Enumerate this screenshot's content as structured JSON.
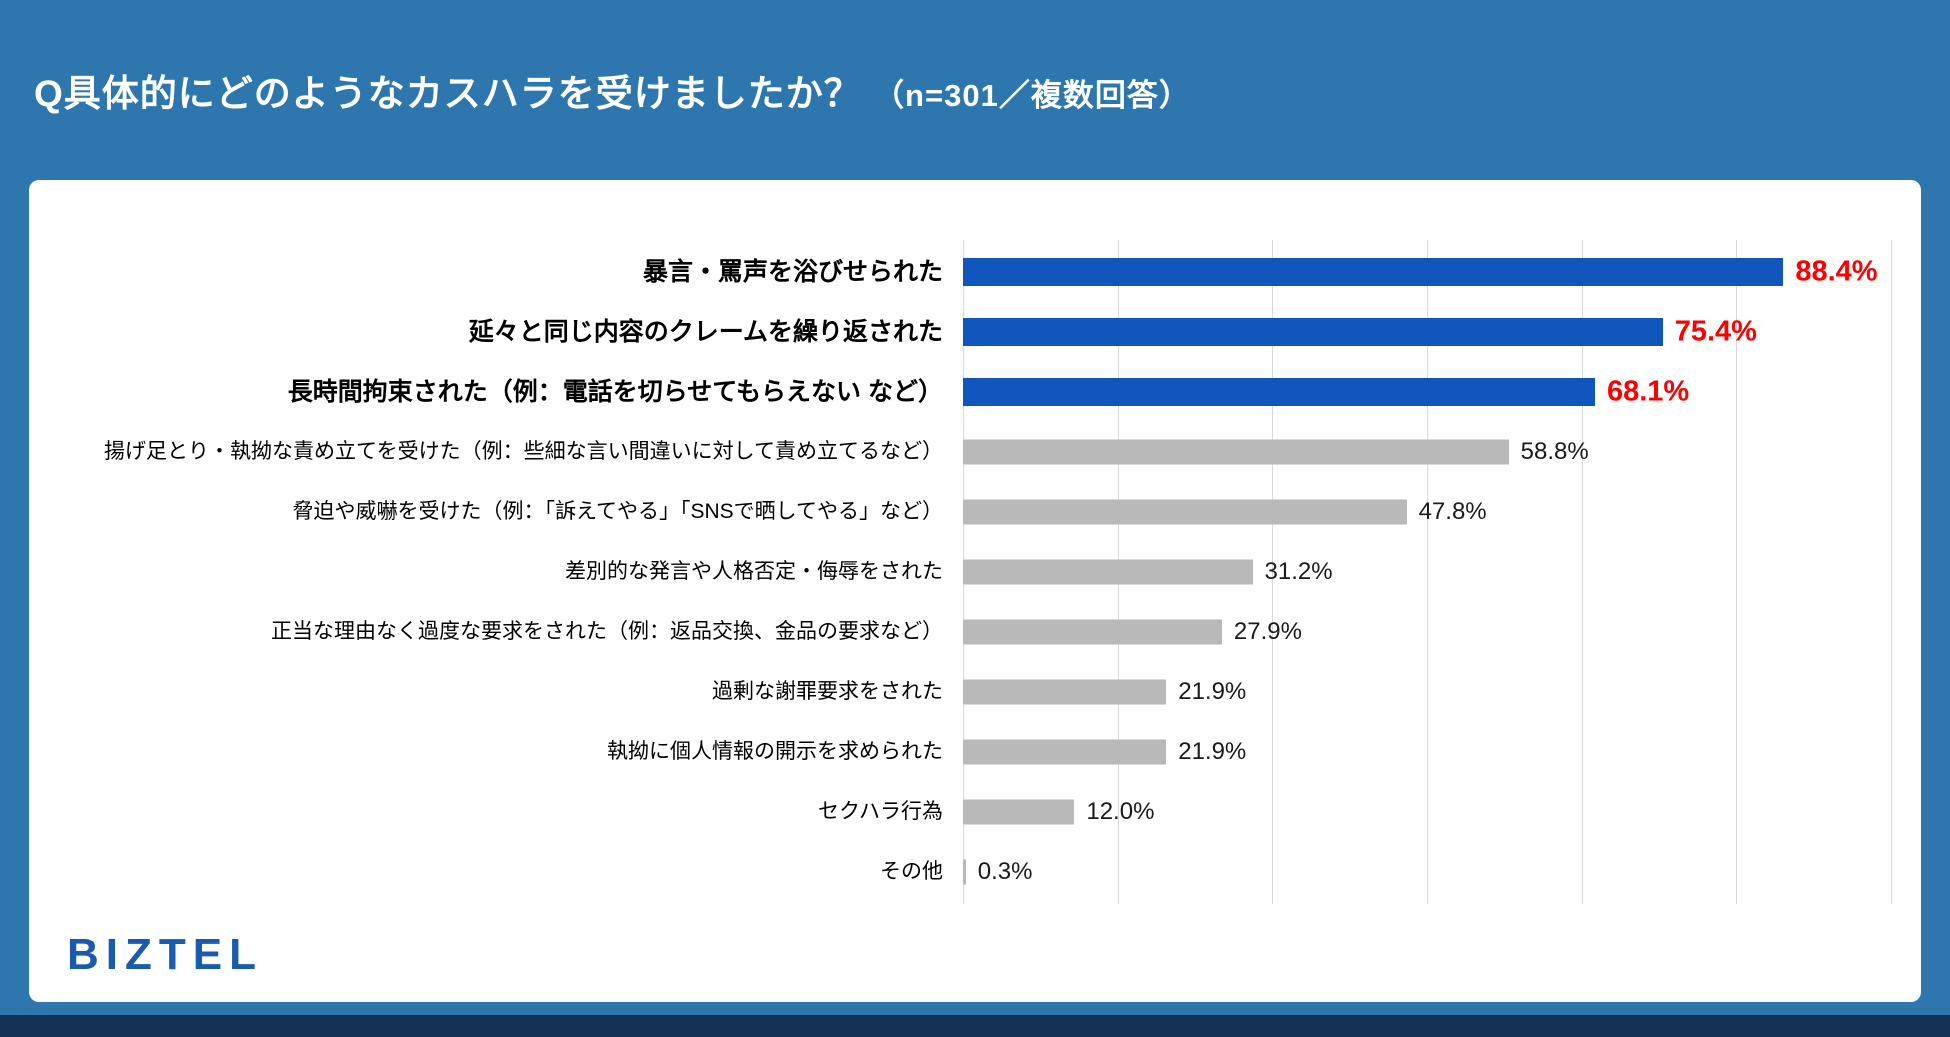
{
  "header": {
    "title": "Q具体的にどのようなカスハラを受けましたか？",
    "subtitle": "（n=301／複数回答）"
  },
  "chart_data": {
    "type": "bar",
    "orientation": "horizontal",
    "title": "Q具体的にどのようなカスハラを受けましたか？（n=301／複数回答）",
    "xlabel": "",
    "ylabel": "",
    "xlim": [
      0,
      100
    ],
    "grid": true,
    "gridline_divisions": 6,
    "legend": "none",
    "highlight_count": 3,
    "categories": [
      "暴言・罵声を浴びせられた",
      "延々と同じ内容のクレームを繰り返された",
      "長時間拘束された（例：電話を切らせてもらえない など）",
      "揚げ足とり・執拗な責め立てを受けた（例：些細な言い間違いに対して責め立てるなど）",
      "脅迫や威嚇を受けた（例：「訴えてやる」「SNSで晒してやる」など）",
      "差別的な発言や人格否定・侮辱をされた",
      "正当な理由なく過度な要求をされた（例：返品交換、金品の要求など）",
      "過剰な謝罪要求をされた",
      "執拗に個人情報の開示を求められた",
      "セクハラ行為",
      "その他"
    ],
    "values": [
      88.4,
      75.4,
      68.1,
      58.8,
      47.8,
      31.2,
      27.9,
      21.9,
      21.9,
      12.0,
      0.3
    ],
    "value_labels": [
      "88.4%",
      "75.4%",
      "68.1%",
      "58.8%",
      "47.8%",
      "31.2%",
      "27.9%",
      "21.9%",
      "21.9%",
      "12.0%",
      "0.3%"
    ]
  },
  "footer": {
    "logo": "BIZTEL"
  },
  "colors": {
    "page_bg": "#2d76ae",
    "panel_bg": "#ffffff",
    "header_text": "#ffffff",
    "highlight_bar": "#1156bd",
    "normal_bar": "#b9b9b9",
    "highlight_value": "#ff0000",
    "normal_value": "#1a1a1a",
    "gridline": "#d9d9d9",
    "logo": "#1a5bb0",
    "bottom_strip": "#143253"
  }
}
